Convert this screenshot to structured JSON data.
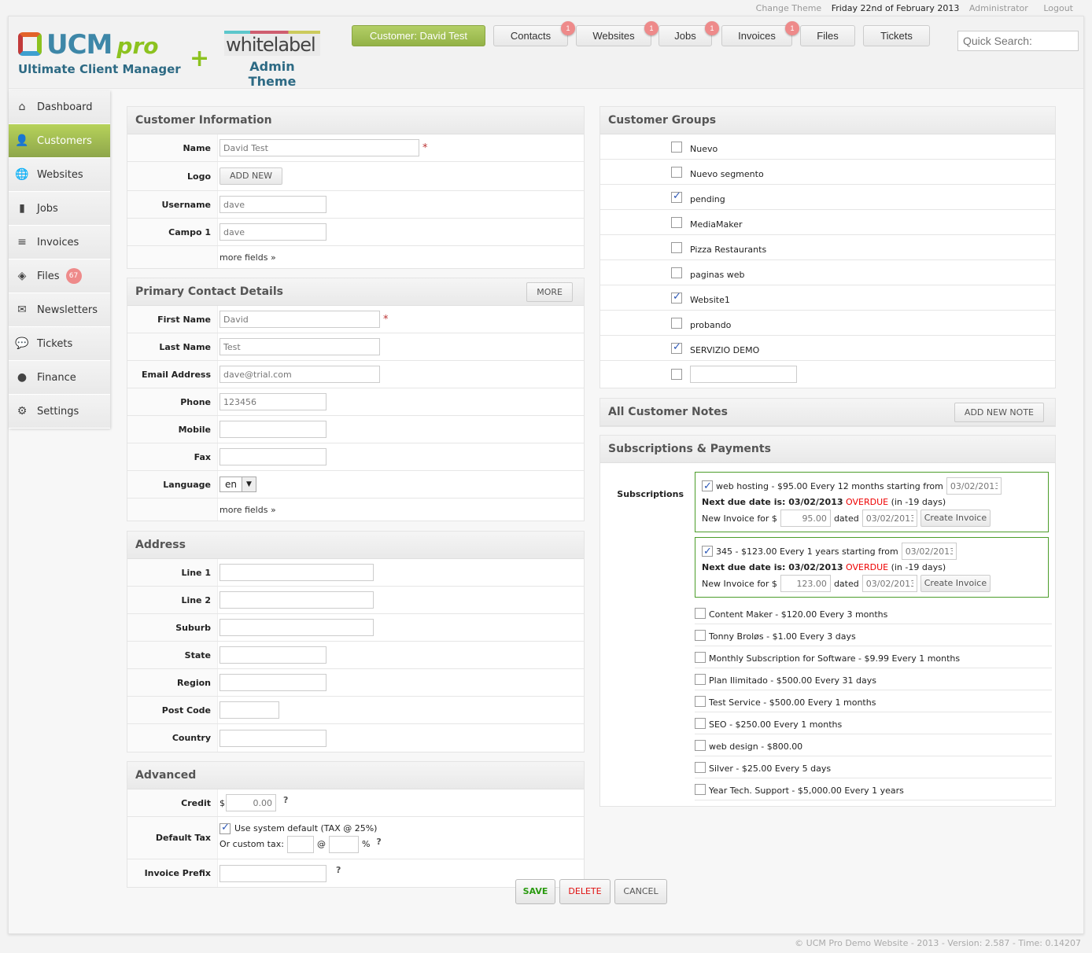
{
  "topbar": {
    "change_theme": "Change Theme",
    "date": "Friday 22nd of February 2013",
    "user": "Administrator",
    "logout": "Logout"
  },
  "logo": {
    "ucm": "UCM",
    "pro": "pro",
    "subtitle": "Ultimate Client Manager",
    "plus": "+",
    "whitelabel": "whitelabel",
    "admin_theme": "Admin Theme"
  },
  "nav": [
    {
      "label": "Customer: David Test",
      "active": true
    },
    {
      "label": "Contacts",
      "badge": "1"
    },
    {
      "label": "Websites",
      "badge": "1"
    },
    {
      "label": "Jobs",
      "badge": "1"
    },
    {
      "label": "Invoices",
      "badge": "1"
    },
    {
      "label": "Files"
    },
    {
      "label": "Tickets"
    }
  ],
  "search": {
    "placeholder": "Quick Search:"
  },
  "sidebar": [
    {
      "label": "Dashboard",
      "icon": "home-icon",
      "glyph": "⌂"
    },
    {
      "label": "Customers",
      "icon": "user-icon",
      "glyph": "👤",
      "active": true
    },
    {
      "label": "Websites",
      "icon": "globe-icon",
      "glyph": "🌐"
    },
    {
      "label": "Jobs",
      "icon": "book-icon",
      "glyph": "▮"
    },
    {
      "label": "Invoices",
      "icon": "coins-icon",
      "glyph": "≡"
    },
    {
      "label": "Files",
      "icon": "box-icon",
      "glyph": "◈",
      "count": "67"
    },
    {
      "label": "Newsletters",
      "icon": "envelope-icon",
      "glyph": "✉"
    },
    {
      "label": "Tickets",
      "icon": "chat-user-icon",
      "glyph": "💬"
    },
    {
      "label": "Finance",
      "icon": "piggy-bank-icon",
      "glyph": "●"
    },
    {
      "label": "Settings",
      "icon": "gear-icon",
      "glyph": "⚙"
    }
  ],
  "customer_info": {
    "title": "Customer Information",
    "name_label": "Name",
    "name": "David Test",
    "logo_label": "Logo",
    "add_new": "ADD NEW",
    "username_label": "Username",
    "username": "dave",
    "campo_label": "Campo 1",
    "campo": "dave",
    "more_fields": "more fields »"
  },
  "contact": {
    "title": "Primary Contact Details",
    "more": "MORE",
    "first_label": "First Name",
    "first": "David",
    "last_label": "Last Name",
    "last": "Test",
    "email_label": "Email Address",
    "email": "dave@trial.com",
    "phone_label": "Phone",
    "phone": "123456",
    "mobile_label": "Mobile",
    "mobile": "",
    "fax_label": "Fax",
    "fax": "",
    "language_label": "Language",
    "language": "en",
    "more_fields": "more fields »"
  },
  "address": {
    "title": "Address",
    "fields": [
      {
        "label": "Line 1",
        "w": 196
      },
      {
        "label": "Line 2",
        "w": 196
      },
      {
        "label": "Suburb",
        "w": 196
      },
      {
        "label": "State",
        "w": 136
      },
      {
        "label": "Region",
        "w": 136
      },
      {
        "label": "Post Code",
        "w": 76
      },
      {
        "label": "Country",
        "w": 136
      }
    ]
  },
  "advanced": {
    "title": "Advanced",
    "credit_label": "Credit",
    "currency": "$",
    "credit": "0.00",
    "help": "?",
    "tax_label": "Default Tax",
    "tax_default": "Use system default (TAX @ 25%)",
    "custom_tax": "Or custom tax:",
    "at": "@",
    "percent": "%",
    "prefix_label": "Invoice Prefix"
  },
  "groups": {
    "title": "Customer Groups",
    "items": [
      {
        "label": "Nuevo",
        "checked": false
      },
      {
        "label": "Nuevo segmento",
        "checked": false
      },
      {
        "label": "pending",
        "checked": true
      },
      {
        "label": "MediaMaker",
        "checked": false
      },
      {
        "label": "Pizza Restaurants",
        "checked": false
      },
      {
        "label": "paginas web",
        "checked": false
      },
      {
        "label": "Website1",
        "checked": true
      },
      {
        "label": "probando",
        "checked": false
      },
      {
        "label": "SERVIZIO DEMO",
        "checked": true
      }
    ]
  },
  "notes": {
    "title": "All Customer Notes",
    "add": "ADD NEW NOTE"
  },
  "subs": {
    "title": "Subscriptions & Payments",
    "label": "Subscriptions",
    "active": [
      {
        "desc": "web hosting - $95.00 Every 12 months starting from",
        "start": "03/02/2013",
        "next_label": "Next due date is: 03/02/2013",
        "overdue": "OVERDUE",
        "days": "(in -19 days)",
        "new_inv": "New Invoice for $",
        "amount": "95.00",
        "dated": "dated",
        "date": "03/02/2013",
        "create": "Create Invoice"
      },
      {
        "desc": "345 - $123.00 Every 1 years starting from",
        "start": "03/02/2013",
        "next_label": "Next due date is: 03/02/2013",
        "overdue": "OVERDUE",
        "days": "(in -19 days)",
        "new_inv": "New Invoice for $",
        "amount": "123.00",
        "dated": "dated",
        "date": "03/02/2013",
        "create": "Create Invoice"
      }
    ],
    "others": [
      "Content Maker - $120.00 Every 3 months",
      "Tonny Broløs - $1.00 Every 3 days",
      "Monthly Subscription for Software - $9.99 Every 1 months",
      "Plan Ilimitado - $500.00 Every 31 days",
      "Test Service - $500.00 Every 1 months",
      "SEO - $250.00 Every 1 months",
      "web design - $800.00",
      "Silver - $25.00 Every 5 days",
      "Year Tech. Support - $5,000.00 Every 1 years"
    ]
  },
  "actions": {
    "save": "SAVE",
    "delete": "DELETE",
    "cancel": "CANCEL"
  },
  "footer": "© UCM Pro Demo Website - 2013 - Version: 2.587 - Time: 0.14207",
  "colors": {
    "accent": "#9dbb52",
    "badge": "#ee8a8a",
    "overdue": "#ee0000",
    "sub_border": "#4c9d2a"
  }
}
